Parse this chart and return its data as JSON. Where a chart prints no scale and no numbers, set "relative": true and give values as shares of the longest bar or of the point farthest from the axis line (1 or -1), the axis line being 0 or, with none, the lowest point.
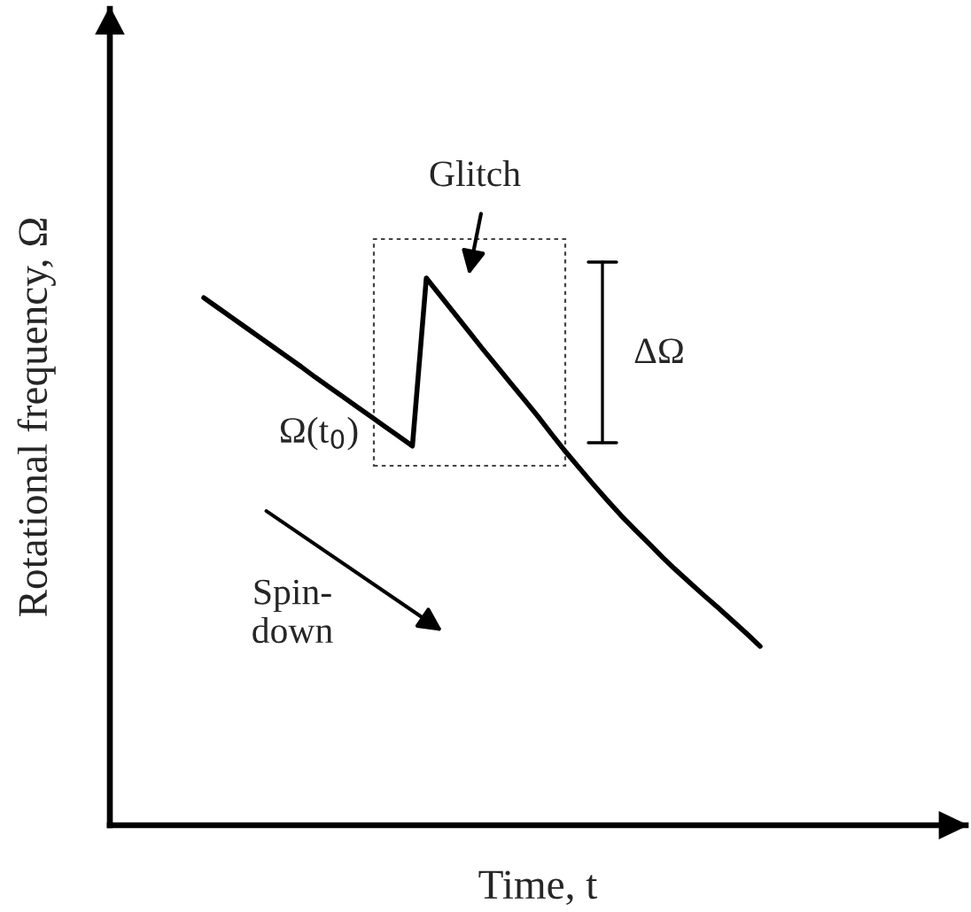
{
  "chart_data": {
    "type": "line",
    "relative": true,
    "xlabel": "Time, t",
    "ylabel": "Rotational frequency, Ω",
    "categories": [
      null,
      null,
      null,
      null,
      null,
      null,
      null,
      null,
      null,
      null,
      null,
      null,
      null,
      null,
      null,
      null,
      null,
      null,
      null,
      null,
      null,
      null,
      null,
      null,
      null,
      null,
      null,
      null,
      null,
      null,
      null,
      null,
      null,
      null,
      null,
      null,
      null,
      null,
      null,
      null,
      null
    ],
    "series": [
      {
        "color": "#000000",
        "values": [
          0.964,
          0.946,
          0.928,
          0.91,
          0.892,
          0.874,
          0.856,
          0.838,
          0.819,
          0.801,
          0.783,
          0.765,
          0.747,
          0.729,
          0.711,
          0.693,
          1.0,
          0.968,
          0.936,
          0.904,
          0.872,
          0.841,
          0.81,
          0.779,
          0.748,
          0.715,
          0.683,
          0.653,
          0.623,
          0.594,
          0.566,
          0.54,
          0.515,
          0.489,
          0.465,
          0.442,
          0.419,
          0.397,
          0.374,
          0.351,
          0.327
        ]
      }
    ],
    "annotations": [
      "Glitch",
      "ΔΩ",
      "Ω(t$_{0}$)",
      "Spin-\ndown"
    ],
    "legend": false,
    "marker": "none",
    "line_style": "solid"
  }
}
